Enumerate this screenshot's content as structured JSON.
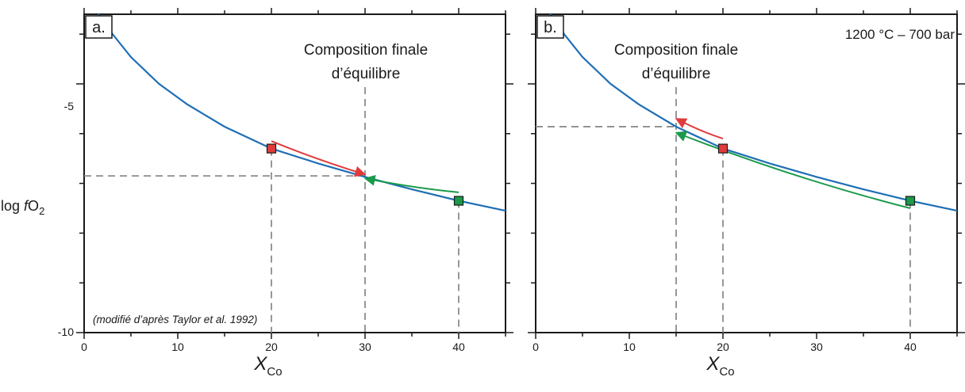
{
  "chart_data": {
    "type": "line",
    "ylabel": {
      "prefix": "log ",
      "italic": "f",
      "main": "O",
      "sub": "2"
    },
    "xlabel": {
      "main": "X",
      "sub": "Co"
    },
    "xlim": [
      0,
      45
    ],
    "ylim": [
      -10,
      -3.6
    ],
    "x_ticks": [
      0,
      10,
      20,
      30,
      40
    ],
    "y_ticks_labeled": [
      -5,
      -10
    ],
    "curve_color": "#1f6fb5",
    "panels": [
      {
        "id": "a",
        "label": "a.",
        "annotation": [
          "Composition finale",
          "d’équilibre"
        ],
        "condition": "",
        "note": "(modifié d’après Taylor et al. 1992)",
        "curve": [
          {
            "x": 1.5,
            "y": -3.6
          },
          {
            "x": 2,
            "y": -3.68
          },
          {
            "x": 3,
            "y": -3.99
          },
          {
            "x": 5,
            "y": -4.46
          },
          {
            "x": 8,
            "y": -5.0
          },
          {
            "x": 11,
            "y": -5.41
          },
          {
            "x": 15,
            "y": -5.86
          },
          {
            "x": 20,
            "y": -6.3
          },
          {
            "x": 25,
            "y": -6.6
          },
          {
            "x": 30,
            "y": -6.87
          },
          {
            "x": 35,
            "y": -7.12
          },
          {
            "x": 40,
            "y": -7.35
          },
          {
            "x": 45,
            "y": -7.55
          }
        ],
        "start_markers": [
          {
            "x": 20,
            "y": -6.3,
            "color": "#e03b3b"
          },
          {
            "x": 40,
            "y": -7.35,
            "color": "#1a9a4a"
          }
        ],
        "arrows": [
          {
            "from": [
              20,
              -6.15
            ],
            "to": [
              30,
              -6.82
            ],
            "color": "#e03b3b"
          },
          {
            "from": [
              40,
              -7.18
            ],
            "to": [
              30,
              -6.9
            ],
            "color": "#1a9a4a"
          }
        ],
        "equilibrium": {
          "x": 30,
          "y": -6.85
        }
      },
      {
        "id": "b",
        "label": "b.",
        "annotation": [
          "Composition finale",
          "d’équilibre"
        ],
        "condition": "1200 °C – 700 bar",
        "note": "",
        "curve": [
          {
            "x": 1.5,
            "y": -3.6
          },
          {
            "x": 2,
            "y": -3.68
          },
          {
            "x": 3,
            "y": -3.99
          },
          {
            "x": 5,
            "y": -4.46
          },
          {
            "x": 8,
            "y": -5.0
          },
          {
            "x": 11,
            "y": -5.41
          },
          {
            "x": 15,
            "y": -5.86
          },
          {
            "x": 20,
            "y": -6.3
          },
          {
            "x": 25,
            "y": -6.6
          },
          {
            "x": 30,
            "y": -6.87
          },
          {
            "x": 35,
            "y": -7.12
          },
          {
            "x": 40,
            "y": -7.35
          },
          {
            "x": 45,
            "y": -7.55
          }
        ],
        "start_markers": [
          {
            "x": 20,
            "y": -6.3,
            "color": "#e03b3b"
          },
          {
            "x": 40,
            "y": -7.35,
            "color": "#1a9a4a"
          }
        ],
        "arrows": [
          {
            "from": [
              20,
              -6.1
            ],
            "to": [
              15,
              -5.7
            ],
            "color": "#e03b3b"
          },
          {
            "from": [
              40,
              -7.5
            ],
            "to": [
              15,
              -5.98
            ],
            "color": "#1a9a4a"
          }
        ],
        "equilibrium": {
          "x": 15,
          "y": -5.86
        }
      }
    ]
  }
}
